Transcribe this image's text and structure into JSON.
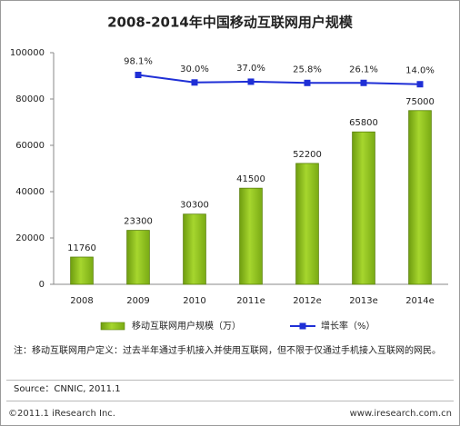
{
  "chart_data": {
    "type": "bar_line",
    "title": "2008-2014年中国移动互联网用户规模",
    "categories": [
      "2008",
      "2009",
      "2010",
      "2011e",
      "2012e",
      "2013e",
      "2014e"
    ],
    "series": [
      {
        "name": "移动互联网用户规模（万）",
        "type": "bar",
        "color": "#8cbf1e",
        "values": [
          11760,
          23300,
          30300,
          41500,
          52200,
          65800,
          75000
        ]
      },
      {
        "name": "增长率（%）",
        "type": "line",
        "axis": "y2",
        "color": "#1f2fd6",
        "values": [
          null,
          98.1,
          30.0,
          37.0,
          25.8,
          26.1,
          14.0
        ],
        "value_labels": [
          null,
          "98.1%",
          "30.0%",
          "37.0%",
          "25.8%",
          "26.1%",
          "14.0%"
        ]
      }
    ],
    "ylim": [
      0,
      100000
    ],
    "yticks": [
      0,
      20000,
      40000,
      60000,
      80000,
      100000
    ],
    "y2lim": [
      -1800,
      300
    ],
    "note": "注：移动互联网用户定义：过去半年通过手机接入并使用互联网，但不限于仅通过手机接入互联网的网民。",
    "source": "Source：CNNIC, 2011.1",
    "copyright": "©2011.1 iResearch Inc.",
    "website": "www.iresearch.com.cn"
  }
}
